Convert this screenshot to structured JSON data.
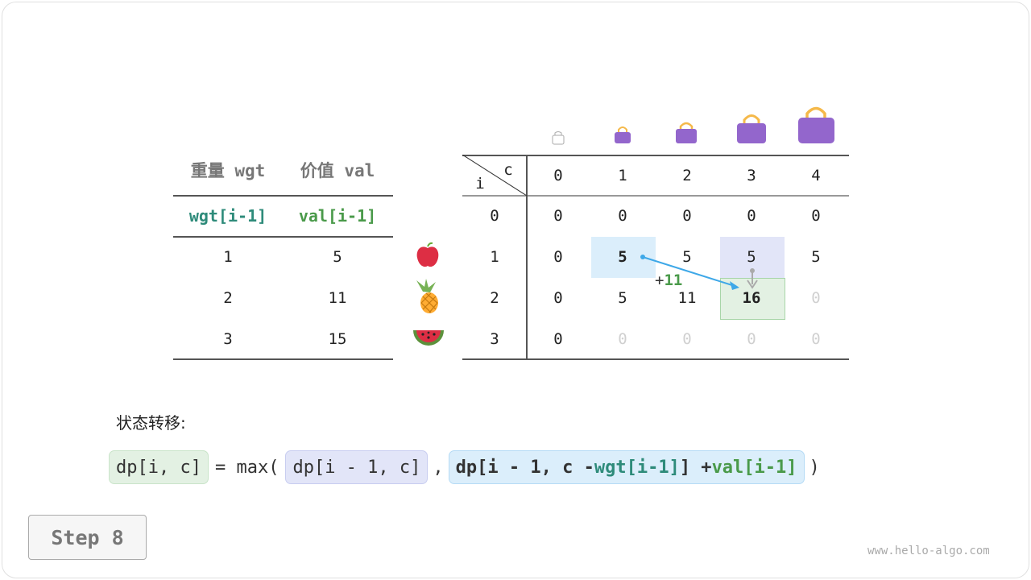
{
  "left_table": {
    "headers": [
      "重量 wgt",
      "价值 val"
    ],
    "subheaders": [
      "wgt[i-1]",
      "val[i-1]"
    ],
    "rows": [
      [
        "1",
        "5"
      ],
      [
        "2",
        "11"
      ],
      [
        "3",
        "15"
      ]
    ]
  },
  "items": [
    "apple-icon",
    "pineapple-icon",
    "watermelon-icon"
  ],
  "dp_table": {
    "corner_c": "c",
    "corner_i": "i",
    "col_headers": [
      "0",
      "1",
      "2",
      "3",
      "4"
    ],
    "row_headers": [
      "0",
      "1",
      "2",
      "3"
    ],
    "cells": [
      [
        "0",
        "0",
        "0",
        "0",
        "0"
      ],
      [
        "0",
        "5",
        "5",
        "5",
        "5"
      ],
      [
        "0",
        "5",
        "11",
        "16",
        "0"
      ],
      [
        "0",
        "0",
        "0",
        "0",
        "0"
      ]
    ],
    "annotation": "+",
    "annotation_value": "11"
  },
  "colors": {
    "teal": "#2e8b7a",
    "green": "#4a9a4a",
    "blue_box": "#dbeefb",
    "purple_box": "#e2e5f8",
    "green_box": "#e3f1e3",
    "arrow": "#3ea8e8",
    "bag": "#9366cc",
    "handle": "#f5b94a"
  },
  "formula_label": "状态转移:",
  "formula": {
    "lhs": "dp[i, c]",
    "eq": "= max(",
    "a": "dp[i - 1, c]",
    "comma": ",",
    "b1": "dp[i - 1, c - ",
    "b_wgt": "wgt[i-1]",
    "b2": "] + ",
    "b_val": "val[i-1]",
    "close": ")"
  },
  "step_button": "Step 8",
  "watermark": "www.hello-algo.com"
}
